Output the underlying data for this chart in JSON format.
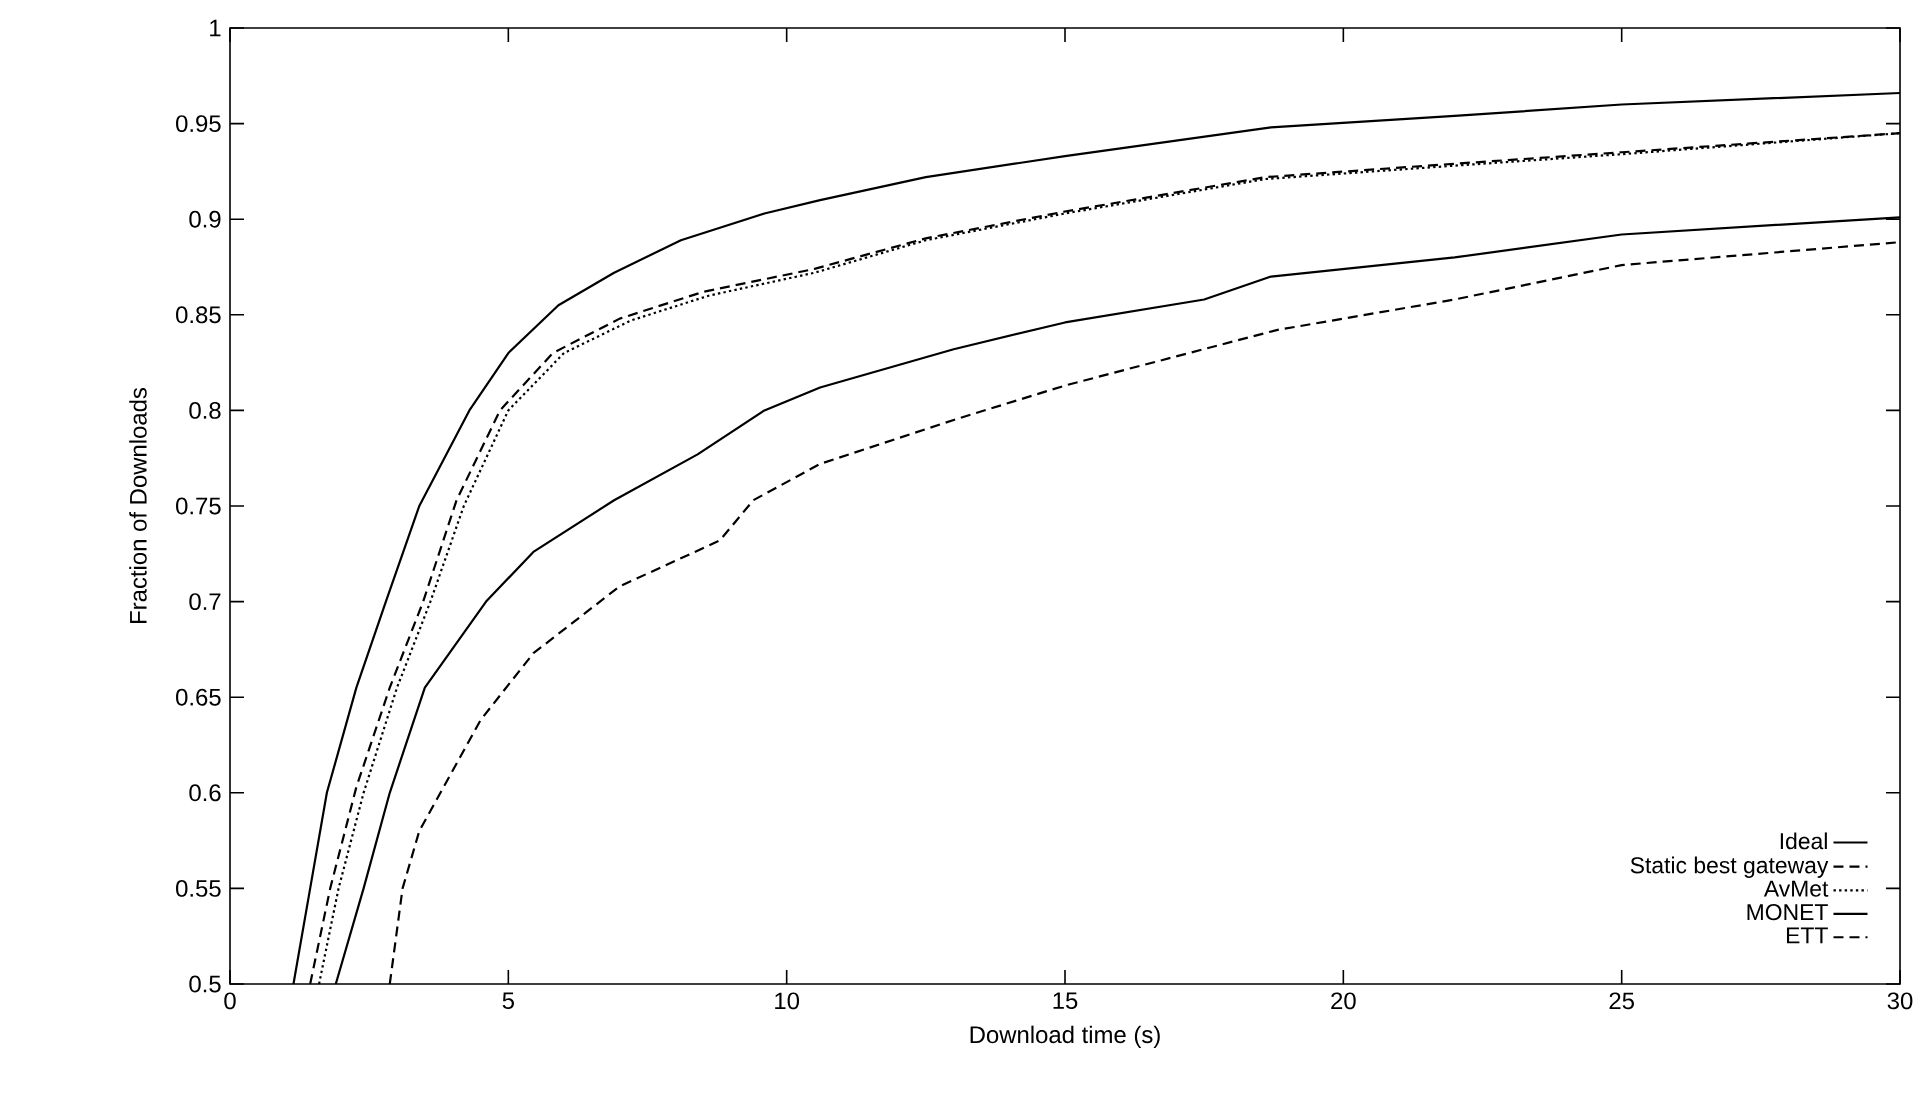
{
  "chart_data": {
    "type": "line",
    "xlabel": "Download time (s)",
    "ylabel": "Fraction of Downloads",
    "xlim": [
      0,
      30
    ],
    "ylim": [
      0.5,
      1
    ],
    "xticks": [
      0,
      5,
      10,
      15,
      20,
      25,
      30
    ],
    "yticks": [
      0.5,
      0.55,
      0.6,
      0.65,
      0.7,
      0.75,
      0.8,
      0.85,
      0.9,
      0.95,
      1
    ],
    "legend": "bottom right",
    "grid": false,
    "marker": "none",
    "series": [
      {
        "name": "Ideal",
        "color": "#000000",
        "line_style": "solid",
        "x": [
          1.14,
          1.44,
          1.74,
          2.27,
          2.8,
          3.4,
          4.3,
          5,
          5.9,
          6.9,
          8.1,
          9.6,
          10.6,
          12.5,
          15,
          18.7,
          22,
          25,
          30
        ],
        "values": [
          0.5,
          0.55,
          0.6,
          0.655,
          0.7,
          0.75,
          0.8,
          0.83,
          0.855,
          0.872,
          0.889,
          0.903,
          0.91,
          0.922,
          0.933,
          0.948,
          0.954,
          0.96,
          0.966
        ]
      },
      {
        "name": "Static best gateway",
        "color": "#000000",
        "line_style": "dashed",
        "x": [
          1.44,
          1.8,
          2.27,
          2.87,
          3.47,
          4.07,
          4.85,
          5.8,
          7,
          8.5,
          10.5,
          12.5,
          15,
          18.6,
          22,
          25,
          30
        ],
        "values": [
          0.5,
          0.55,
          0.603,
          0.655,
          0.7,
          0.753,
          0.8,
          0.83,
          0.848,
          0.862,
          0.874,
          0.89,
          0.904,
          0.922,
          0.929,
          0.935,
          0.945
        ]
      },
      {
        "name": "AvMet",
        "color": "#000000",
        "line_style": "dotted",
        "x": [
          1.6,
          1.95,
          2.4,
          3,
          3.6,
          4.2,
          5,
          6,
          7.2,
          8.6,
          10.5,
          12.5,
          15,
          18.6,
          22,
          25,
          30
        ],
        "values": [
          0.5,
          0.55,
          0.6,
          0.655,
          0.7,
          0.75,
          0.8,
          0.83,
          0.847,
          0.86,
          0.872,
          0.889,
          0.903,
          0.921,
          0.928,
          0.934,
          0.945
        ]
      },
      {
        "name": "MONET",
        "color": "#000000",
        "line_style": "solid",
        "x": [
          1.9,
          2.4,
          2.87,
          3.5,
          4.6,
          5.45,
          6.9,
          8.4,
          9.6,
          10.6,
          13,
          15,
          17.5,
          18.7,
          22,
          25,
          30
        ],
        "values": [
          0.5,
          0.55,
          0.6,
          0.655,
          0.7,
          0.726,
          0.753,
          0.777,
          0.8,
          0.812,
          0.832,
          0.846,
          0.858,
          0.87,
          0.88,
          0.892,
          0.901
        ]
      },
      {
        "name": "ETT",
        "color": "#000000",
        "line_style": "dashed",
        "x": [
          2.87,
          3.1,
          3.4,
          4.5,
          5.45,
          7,
          8.8,
          9.4,
          10.6,
          13,
          15,
          18.8,
          22,
          25,
          30
        ],
        "values": [
          0.5,
          0.55,
          0.58,
          0.638,
          0.673,
          0.708,
          0.732,
          0.753,
          0.772,
          0.795,
          0.813,
          0.842,
          0.858,
          0.876,
          0.888
        ]
      }
    ]
  }
}
